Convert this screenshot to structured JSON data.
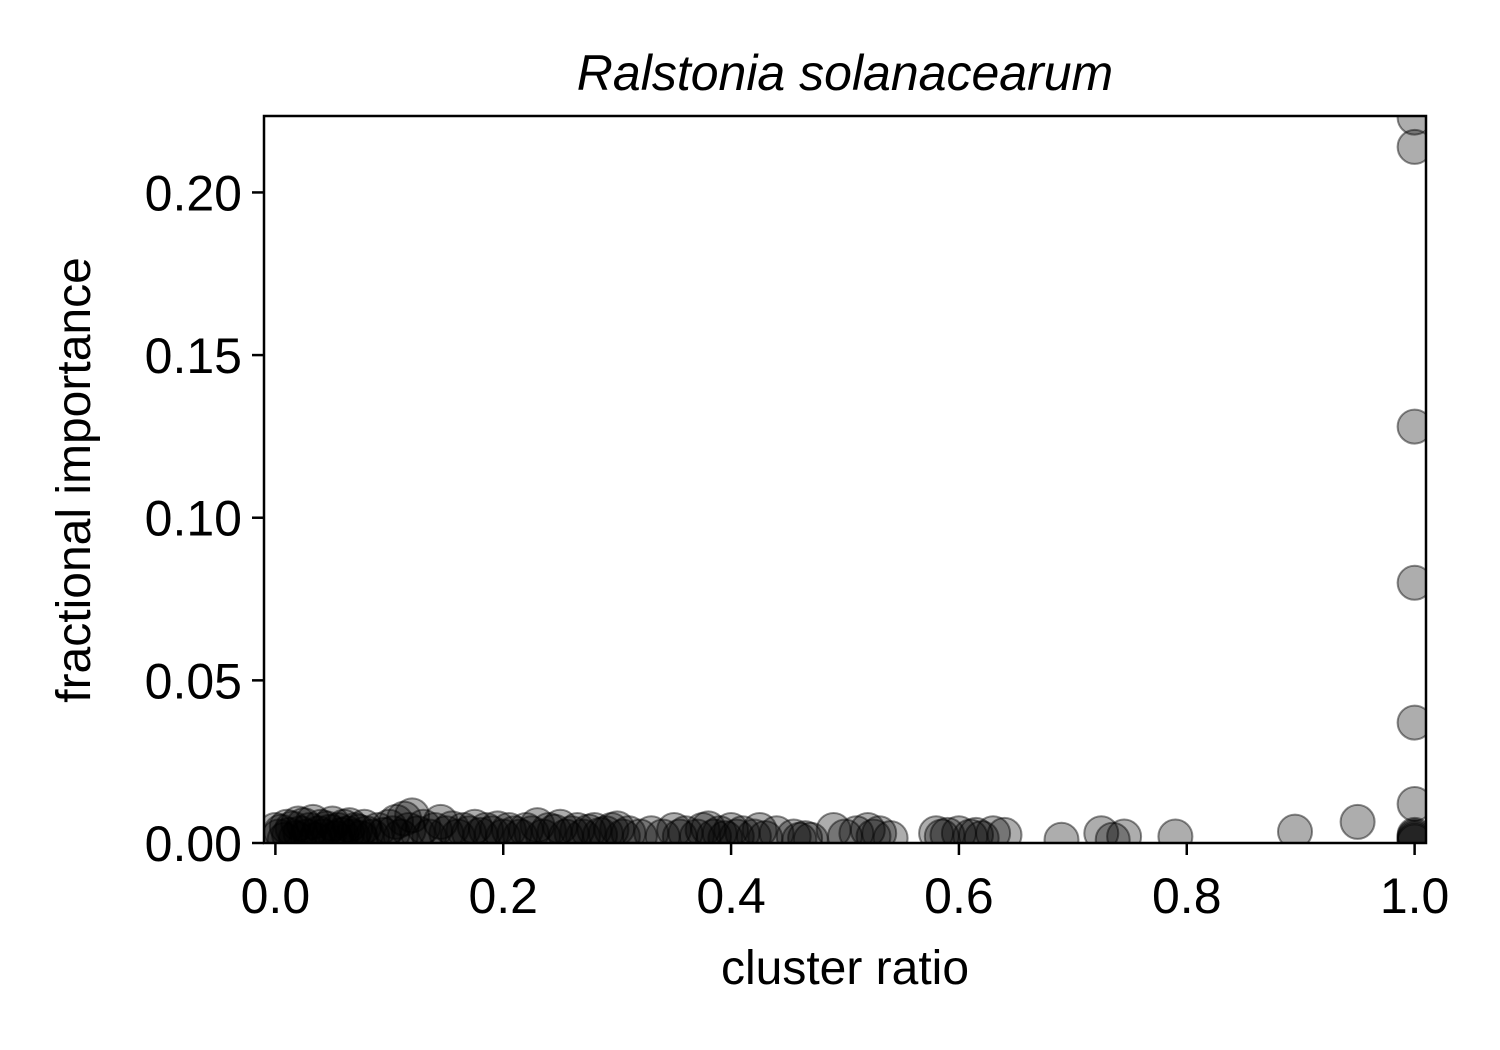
{
  "chart_data": {
    "type": "scatter",
    "title": "Ralstonia solanacearum",
    "xlabel": "cluster ratio",
    "ylabel": "fractional importance",
    "xlim": [
      -0.01,
      1.01
    ],
    "ylim": [
      0.0,
      0.2235
    ],
    "xticks": [
      0.0,
      0.2,
      0.4,
      0.6,
      0.8,
      1.0
    ],
    "xtick_labels": [
      "0.0",
      "0.2",
      "0.4",
      "0.6",
      "0.8",
      "1.0"
    ],
    "yticks": [
      0.0,
      0.05,
      0.1,
      0.15,
      0.2
    ],
    "ytick_labels": [
      "0.00",
      "0.05",
      "0.10",
      "0.15",
      "0.20"
    ],
    "grid": false,
    "legend": "none",
    "marker_color": "#000000",
    "marker_alpha": 0.32,
    "series": [
      {
        "points": [
          {
            "x": 0.0,
            "y": 0.004
          },
          {
            "x": 0.003,
            "y": 0.002
          },
          {
            "x": 0.005,
            "y": 0.0035
          },
          {
            "x": 0.008,
            "y": 0.001
          },
          {
            "x": 0.01,
            "y": 0.005
          },
          {
            "x": 0.012,
            "y": 0.0025
          },
          {
            "x": 0.015,
            "y": 0.0045
          },
          {
            "x": 0.018,
            "y": 0.0015
          },
          {
            "x": 0.02,
            "y": 0.006
          },
          {
            "x": 0.022,
            "y": 0.003
          },
          {
            "x": 0.025,
            "y": 0.0055
          },
          {
            "x": 0.028,
            "y": 0.002
          },
          {
            "x": 0.03,
            "y": 0.004
          },
          {
            "x": 0.033,
            "y": 0.0065
          },
          {
            "x": 0.035,
            "y": 0.001
          },
          {
            "x": 0.038,
            "y": 0.003
          },
          {
            "x": 0.04,
            "y": 0.005
          },
          {
            "x": 0.042,
            "y": 0.002
          },
          {
            "x": 0.045,
            "y": 0.0045
          },
          {
            "x": 0.048,
            "y": 0.0035
          },
          {
            "x": 0.05,
            "y": 0.006
          },
          {
            "x": 0.053,
            "y": 0.0015
          },
          {
            "x": 0.055,
            "y": 0.004
          },
          {
            "x": 0.058,
            "y": 0.0025
          },
          {
            "x": 0.06,
            "y": 0.005
          },
          {
            "x": 0.063,
            "y": 0.003
          },
          {
            "x": 0.065,
            "y": 0.0055
          },
          {
            "x": 0.068,
            "y": 0.002
          },
          {
            "x": 0.07,
            "y": 0.004
          },
          {
            "x": 0.073,
            "y": 0.0035
          },
          {
            "x": 0.075,
            "y": 0.0015
          },
          {
            "x": 0.078,
            "y": 0.005
          },
          {
            "x": 0.08,
            "y": 0.003
          },
          {
            "x": 0.085,
            "y": 0.002
          },
          {
            "x": 0.09,
            "y": 0.004
          },
          {
            "x": 0.095,
            "y": 0.0025
          },
          {
            "x": 0.1,
            "y": 0.005
          },
          {
            "x": 0.103,
            "y": 0.003
          },
          {
            "x": 0.106,
            "y": 0.0065
          },
          {
            "x": 0.11,
            "y": 0.002
          },
          {
            "x": 0.113,
            "y": 0.0075
          },
          {
            "x": 0.117,
            "y": 0.004
          },
          {
            "x": 0.12,
            "y": 0.0085
          },
          {
            "x": 0.125,
            "y": 0.003
          },
          {
            "x": 0.13,
            "y": 0.005
          },
          {
            "x": 0.135,
            "y": 0.002
          },
          {
            "x": 0.14,
            "y": 0.004
          },
          {
            "x": 0.145,
            "y": 0.0065
          },
          {
            "x": 0.15,
            "y": 0.003
          },
          {
            "x": 0.155,
            "y": 0.0045
          },
          {
            "x": 0.16,
            "y": 0.002
          },
          {
            "x": 0.165,
            "y": 0.004
          },
          {
            "x": 0.17,
            "y": 0.003
          },
          {
            "x": 0.175,
            "y": 0.005
          },
          {
            "x": 0.18,
            "y": 0.0025
          },
          {
            "x": 0.185,
            "y": 0.004
          },
          {
            "x": 0.19,
            "y": 0.003
          },
          {
            "x": 0.195,
            "y": 0.0045
          },
          {
            "x": 0.2,
            "y": 0.002
          },
          {
            "x": 0.205,
            "y": 0.004
          },
          {
            "x": 0.21,
            "y": 0.003
          },
          {
            "x": 0.215,
            "y": 0.002
          },
          {
            "x": 0.22,
            "y": 0.004
          },
          {
            "x": 0.225,
            "y": 0.003
          },
          {
            "x": 0.23,
            "y": 0.0055
          },
          {
            "x": 0.235,
            "y": 0.002
          },
          {
            "x": 0.24,
            "y": 0.004
          },
          {
            "x": 0.245,
            "y": 0.0035
          },
          {
            "x": 0.25,
            "y": 0.005
          },
          {
            "x": 0.255,
            "y": 0.002
          },
          {
            "x": 0.26,
            "y": 0.003
          },
          {
            "x": 0.265,
            "y": 0.004
          },
          {
            "x": 0.27,
            "y": 0.002
          },
          {
            "x": 0.275,
            "y": 0.0035
          },
          {
            "x": 0.28,
            "y": 0.004
          },
          {
            "x": 0.285,
            "y": 0.0025
          },
          {
            "x": 0.29,
            "y": 0.003
          },
          {
            "x": 0.295,
            "y": 0.004
          },
          {
            "x": 0.3,
            "y": 0.0045
          },
          {
            "x": 0.305,
            "y": 0.002
          },
          {
            "x": 0.31,
            "y": 0.003
          },
          {
            "x": 0.32,
            "y": 0.002
          },
          {
            "x": 0.33,
            "y": 0.003
          },
          {
            "x": 0.34,
            "y": 0.002
          },
          {
            "x": 0.35,
            "y": 0.004
          },
          {
            "x": 0.355,
            "y": 0.002
          },
          {
            "x": 0.36,
            "y": 0.003
          },
          {
            "x": 0.37,
            "y": 0.002
          },
          {
            "x": 0.375,
            "y": 0.004
          },
          {
            "x": 0.38,
            "y": 0.0045
          },
          {
            "x": 0.385,
            "y": 0.002
          },
          {
            "x": 0.39,
            "y": 0.003
          },
          {
            "x": 0.395,
            "y": 0.0015
          },
          {
            "x": 0.4,
            "y": 0.004
          },
          {
            "x": 0.405,
            "y": 0.002
          },
          {
            "x": 0.41,
            "y": 0.003
          },
          {
            "x": 0.42,
            "y": 0.002
          },
          {
            "x": 0.425,
            "y": 0.004
          },
          {
            "x": 0.43,
            "y": 0.0015
          },
          {
            "x": 0.44,
            "y": 0.003
          },
          {
            "x": 0.455,
            "y": 0.002
          },
          {
            "x": 0.46,
            "y": 0.001
          },
          {
            "x": 0.465,
            "y": 0.0015
          },
          {
            "x": 0.47,
            "y": 0.001
          },
          {
            "x": 0.49,
            "y": 0.004
          },
          {
            "x": 0.5,
            "y": 0.002
          },
          {
            "x": 0.51,
            "y": 0.003
          },
          {
            "x": 0.52,
            "y": 0.004
          },
          {
            "x": 0.525,
            "y": 0.002
          },
          {
            "x": 0.53,
            "y": 0.003
          },
          {
            "x": 0.54,
            "y": 0.0015
          },
          {
            "x": 0.58,
            "y": 0.003
          },
          {
            "x": 0.585,
            "y": 0.002
          },
          {
            "x": 0.59,
            "y": 0.0025
          },
          {
            "x": 0.6,
            "y": 0.003
          },
          {
            "x": 0.61,
            "y": 0.002
          },
          {
            "x": 0.615,
            "y": 0.0025
          },
          {
            "x": 0.62,
            "y": 0.0015
          },
          {
            "x": 0.63,
            "y": 0.003
          },
          {
            "x": 0.64,
            "y": 0.0025
          },
          {
            "x": 0.69,
            "y": 0.001
          },
          {
            "x": 0.725,
            "y": 0.003
          },
          {
            "x": 0.735,
            "y": 0.001
          },
          {
            "x": 0.745,
            "y": 0.002
          },
          {
            "x": 0.79,
            "y": 0.002
          },
          {
            "x": 0.895,
            "y": 0.0035
          },
          {
            "x": 0.95,
            "y": 0.0065
          },
          {
            "x": 1.0,
            "y": 0.0005
          },
          {
            "x": 1.0,
            "y": 0.001
          },
          {
            "x": 1.0,
            "y": 0.0015
          },
          {
            "x": 1.0,
            "y": 0.002
          },
          {
            "x": 1.0,
            "y": 0.0025
          },
          {
            "x": 1.0,
            "y": 0.012
          },
          {
            "x": 1.0,
            "y": 0.037
          },
          {
            "x": 1.0,
            "y": 0.08
          },
          {
            "x": 1.0,
            "y": 0.128
          },
          {
            "x": 1.0,
            "y": 0.214
          },
          {
            "x": 1.0,
            "y": 0.223
          }
        ]
      }
    ]
  }
}
